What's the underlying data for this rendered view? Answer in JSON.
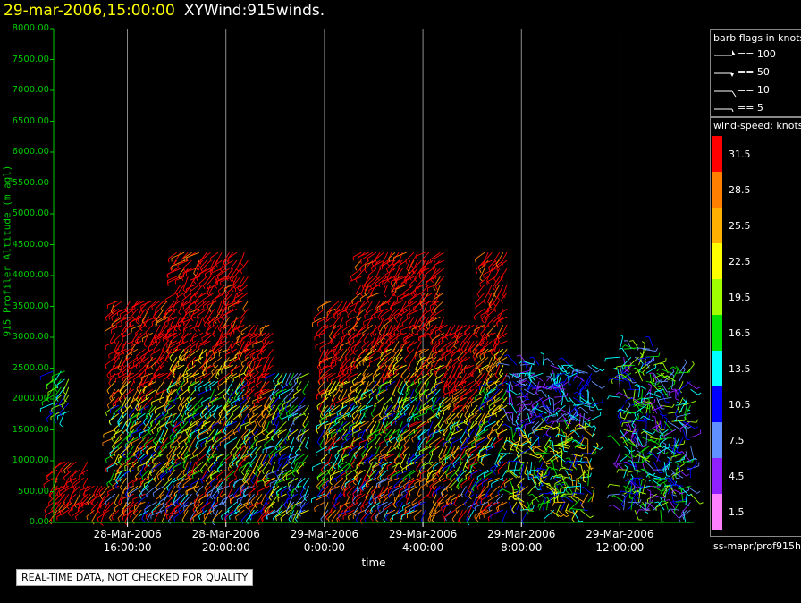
{
  "header": {
    "datetime": "29-mar-2006,15:00:00",
    "product": "XYWind:915winds."
  },
  "notice": "REAL-TIME DATA, NOT CHECKED FOR QUALITY",
  "barb_legend": {
    "title": "barb flags in knots",
    "entries": [
      "== 100",
      "== 50",
      "== 10",
      "== 5"
    ]
  },
  "color_legend": {
    "title": "wind-speed: knots",
    "labels": [
      "31.5",
      "28.5",
      "25.5",
      "22.5",
      "19.5",
      "16.5",
      "13.5",
      "10.5",
      "7.5",
      "4.5",
      "1.5"
    ],
    "colors": [
      "#ff0000",
      "#ff8000",
      "#ffb000",
      "#ffff00",
      "#a0ff00",
      "#00e000",
      "#00ffff",
      "#0000ff",
      "#6090ff",
      "#9020ff",
      "#ff80ff"
    ]
  },
  "source_label": "iss-mapr/prof915h",
  "chart_data": {
    "type": "scatter",
    "title": "29-mar-2006,15:00:00  XYWind:915winds.",
    "xlabel": "time",
    "ylabel": "915 Profiler Altitude (m agl)",
    "ylim": [
      0,
      8000
    ],
    "yticks": [
      "0.00",
      "500.00",
      "1000.00",
      "1500.00",
      "2000.00",
      "2500.00",
      "3000.00",
      "3500.00",
      "4000.00",
      "4500.00",
      "5000.00",
      "5500.00",
      "6000.00",
      "6500.00",
      "7000.00",
      "7500.00",
      "8000.00"
    ],
    "xlim": [
      "28-Mar-2006 13:00",
      "29-Mar-2006 15:00"
    ],
    "xticks": [
      {
        "date": "28-Mar-2006",
        "time": "16:00:00"
      },
      {
        "date": "28-Mar-2006",
        "time": "20:00:00"
      },
      {
        "date": "29-Mar-2006",
        "time": "0:00:00"
      },
      {
        "date": "29-Mar-2006",
        "time": "4:00:00"
      },
      {
        "date": "29-Mar-2006",
        "time": "8:00:00"
      },
      {
        "date": "29-Mar-2006",
        "time": "12:00:00"
      }
    ],
    "grid": "vertical",
    "profiles": [
      {
        "start": "28-Mar-2006 13:00",
        "end": "28-Mar-2006 14:30",
        "top": 1000,
        "regime": "low_red"
      },
      {
        "start": "28-Mar-2006 13:00",
        "end": "28-Mar-2006 13:40",
        "top": 2500,
        "regime": "isolated"
      },
      {
        "start": "28-Mar-2006 14:30",
        "end": "28-Mar-2006 15:30",
        "top": 700,
        "regime": "low_red"
      },
      {
        "start": "28-Mar-2006 15:30",
        "end": "28-Mar-2006 18:00",
        "top": 3600,
        "regime": "convective"
      },
      {
        "start": "28-Mar-2006 18:00",
        "end": "28-Mar-2006 21:00",
        "top": 4500,
        "regime": "convective"
      },
      {
        "start": "28-Mar-2006 21:00",
        "end": "28-Mar-2006 22:00",
        "top": 3300,
        "regime": "convective"
      },
      {
        "start": "28-Mar-2006 22:00",
        "end": "28-Mar-2006 23:30",
        "top": 2500,
        "regime": "decaying"
      },
      {
        "start": "29-Mar-2006 00:00",
        "end": "29-Mar-2006 01:30",
        "top": 3600,
        "regime": "convective"
      },
      {
        "start": "29-Mar-2006 01:30",
        "end": "29-Mar-2006 05:00",
        "top": 4500,
        "regime": "convective"
      },
      {
        "start": "29-Mar-2006 05:00",
        "end": "29-Mar-2006 06:30",
        "top": 3300,
        "regime": "convective"
      },
      {
        "start": "29-Mar-2006 06:30",
        "end": "29-Mar-2006 07:30",
        "top": 4400,
        "regime": "convective"
      },
      {
        "start": "29-Mar-2006 07:30",
        "end": "29-Mar-2006 11:00",
        "top": 2600,
        "regime": "moderate"
      },
      {
        "start": "29-Mar-2006 12:00",
        "end": "29-Mar-2006 13:30",
        "top": 2900,
        "regime": "light"
      },
      {
        "start": "29-Mar-2006 13:30",
        "end": "29-Mar-2006 15:00",
        "top": 2500,
        "regime": "light"
      }
    ]
  }
}
